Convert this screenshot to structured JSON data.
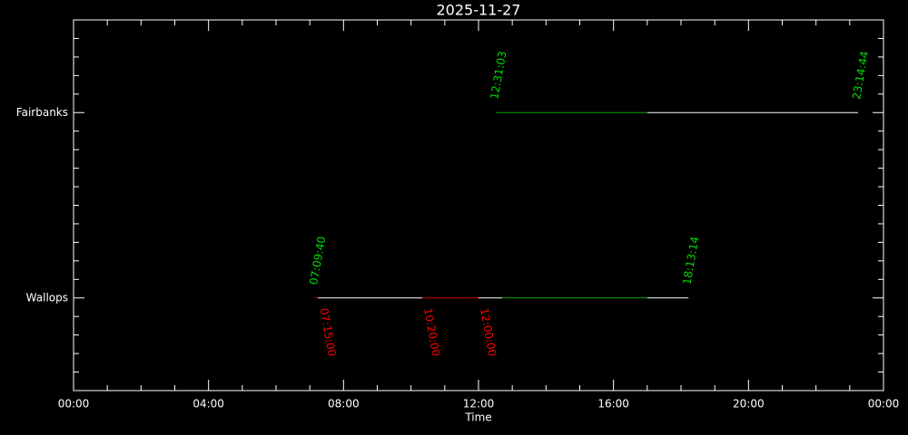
{
  "chart_data": {
    "type": "timeline",
    "title": "2025-11-27",
    "x_label": "Time",
    "xlim": [
      0,
      24
    ],
    "xticks": [
      {
        "value": 0,
        "label": "00:00"
      },
      {
        "value": 4,
        "label": "04:00"
      },
      {
        "value": 8,
        "label": "08:00"
      },
      {
        "value": 12,
        "label": "12:00"
      },
      {
        "value": 16,
        "label": "16:00"
      },
      {
        "value": 20,
        "label": "20:00"
      },
      {
        "value": 24,
        "label": "00:00"
      }
    ],
    "xminorticks": [
      1,
      2,
      3,
      5,
      6,
      7,
      9,
      10,
      11,
      13,
      14,
      15,
      17,
      18,
      19,
      21,
      22,
      23
    ],
    "ylim": [
      0,
      2
    ],
    "yticks": [
      {
        "value": 0.5,
        "label": "Wallops"
      },
      {
        "value": 1.5,
        "label": "Fairbanks"
      }
    ],
    "yminorticks": [
      0.1,
      0.2,
      0.3,
      0.4,
      0.6,
      0.7,
      0.8,
      0.9,
      1.0,
      1.1,
      1.2,
      1.3,
      1.4,
      1.6,
      1.7,
      1.8,
      1.9
    ],
    "label_color": "#00dd00",
    "event_color": "#ff0000",
    "series": [
      {
        "start": "07:09:40",
        "end": "18:13:14",
        "events": [
          "07:15:00",
          "10:20:00",
          "12:00:00"
        ],
        "segments": [
          {
            "start": 7.161,
            "end": 7.25,
            "color": "#ff0000"
          },
          {
            "start": 7.25,
            "end": 10.333,
            "color": "#ffffff"
          },
          {
            "start": 10.333,
            "end": 12.0,
            "color": "#cc0000"
          },
          {
            "start": 12.0,
            "end": 12.7,
            "color": "#ffffff"
          },
          {
            "start": 12.7,
            "end": 17.0,
            "color": "#00aa00"
          },
          {
            "start": 17.0,
            "end": 18.221,
            "color": "#ffffff"
          }
        ]
      },
      {
        "start": "12:31:03",
        "end": "23:14:44",
        "events": [],
        "segments": [
          {
            "start": 12.518,
            "end": 17.0,
            "color": "#00aa00"
          },
          {
            "start": 17.0,
            "end": 23.246,
            "color": "#ffffff"
          }
        ]
      }
    ]
  }
}
